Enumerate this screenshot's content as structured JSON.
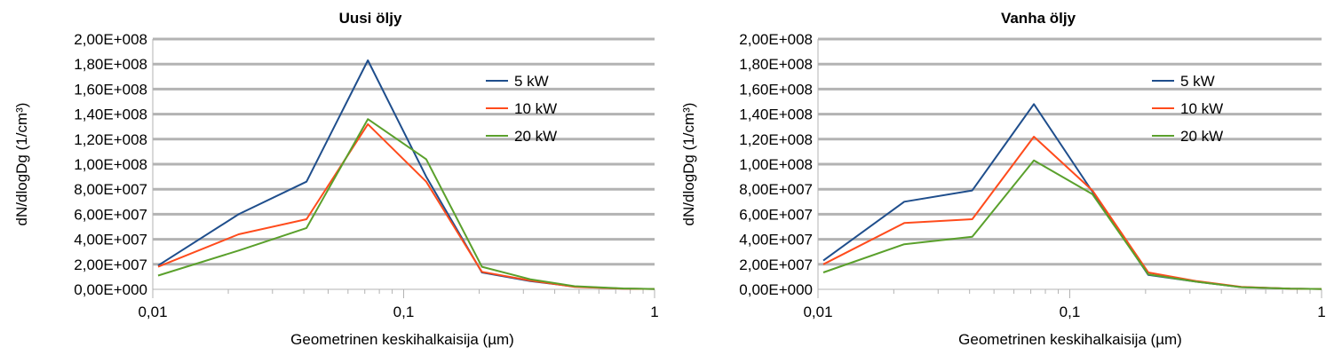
{
  "chart_data": [
    {
      "type": "line",
      "title": "Uusi öljy",
      "xlabel": "Geometrinen keskihalkaisija (µm)",
      "ylabel": "dN/dlogDg (1/cm³)",
      "xscale": "log",
      "xlim": [
        0.01,
        1
      ],
      "ylim": [
        0,
        200000000
      ],
      "x_ticks": [
        "0,01",
        "0,1",
        "1"
      ],
      "y_ticks": [
        "0,00E+000",
        "2,00E+007",
        "4,00E+007",
        "6,00E+007",
        "8,00E+007",
        "1,00E+008",
        "1,20E+008",
        "1,40E+008",
        "1,60E+008",
        "1,80E+008",
        "2,00E+008"
      ],
      "grid": true,
      "legend_position": "inside-right",
      "x": [
        0.0105,
        0.022,
        0.041,
        0.072,
        0.123,
        0.205,
        0.32,
        0.48,
        0.75,
        1.0
      ],
      "series": [
        {
          "name": "5 kW",
          "color": "#1f4e8c",
          "values": [
            19000000,
            60000000,
            86000000,
            183000000,
            90000000,
            13500000,
            6500000,
            2200000,
            600000,
            300000
          ]
        },
        {
          "name": "10 kW",
          "color": "#ff4b1c",
          "values": [
            18000000,
            44000000,
            56000000,
            132000000,
            86000000,
            14000000,
            7000000,
            2000000,
            500000,
            300000
          ]
        },
        {
          "name": "20 kW",
          "color": "#5aa02c",
          "values": [
            11000000,
            31000000,
            49000000,
            136000000,
            104000000,
            18000000,
            8000000,
            2500000,
            700000,
            300000
          ]
        }
      ]
    },
    {
      "type": "line",
      "title": "Vanha öljy",
      "xlabel": "Geometrinen keskihalkaisija (µm)",
      "ylabel": "dN/dlogDg (1/cm³)",
      "xscale": "log",
      "xlim": [
        0.01,
        1
      ],
      "ylim": [
        0,
        200000000
      ],
      "x_ticks": [
        "0,01",
        "0,1",
        "1"
      ],
      "y_ticks": [
        "0,00E+000",
        "2,00E+007",
        "4,00E+007",
        "6,00E+007",
        "8,00E+007",
        "1,00E+008",
        "1,20E+008",
        "1,40E+008",
        "1,60E+008",
        "1,80E+008",
        "2,00E+008"
      ],
      "grid": true,
      "legend_position": "inside-right",
      "x": [
        0.0105,
        0.022,
        0.041,
        0.072,
        0.123,
        0.205,
        0.32,
        0.48,
        0.75,
        1.0
      ],
      "series": [
        {
          "name": "5 kW",
          "color": "#1f4e8c",
          "values": [
            23000000,
            70000000,
            79000000,
            148000000,
            78000000,
            11500000,
            6000000,
            1800000,
            500000,
            300000
          ]
        },
        {
          "name": "10 kW",
          "color": "#ff4b1c",
          "values": [
            20000000,
            53000000,
            56000000,
            122000000,
            79000000,
            13500000,
            6500000,
            2000000,
            500000,
            300000
          ]
        },
        {
          "name": "20 kW",
          "color": "#5aa02c",
          "values": [
            13500000,
            36000000,
            42000000,
            103000000,
            76000000,
            12000000,
            6000000,
            1700000,
            500000,
            300000
          ]
        }
      ]
    }
  ]
}
